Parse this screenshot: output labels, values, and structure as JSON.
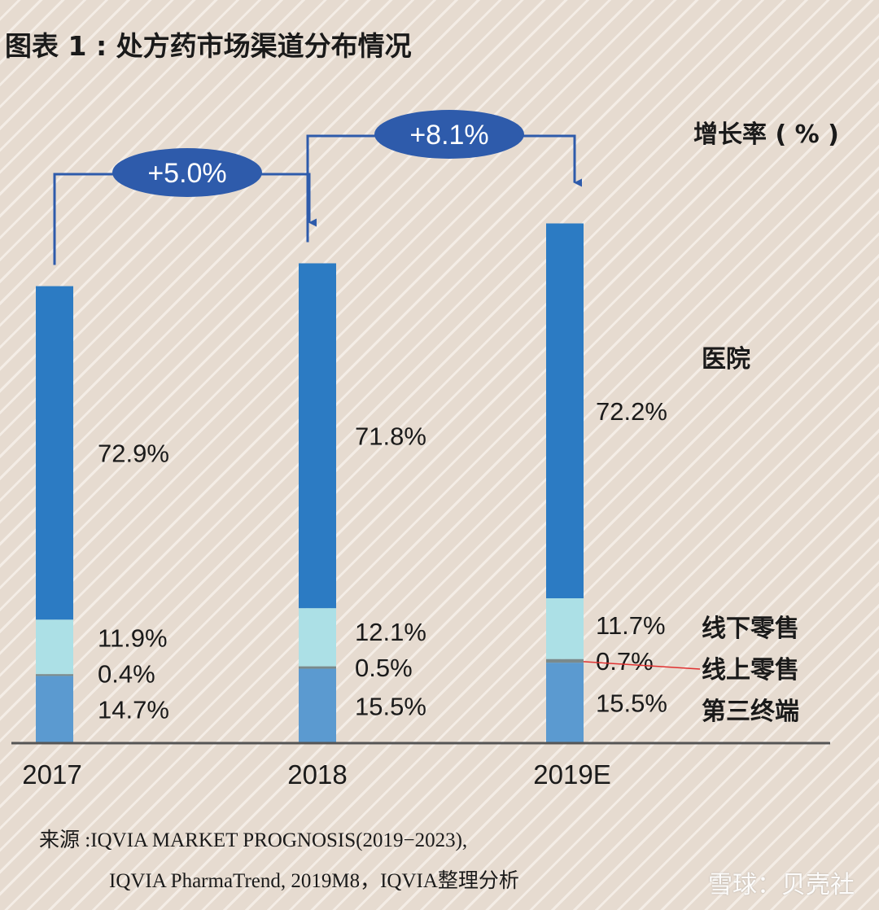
{
  "title": "图表 1 : 处方药市场渠道分布情况",
  "chart_data": {
    "type": "bar",
    "stacked": true,
    "categories": [
      "2017",
      "2018",
      "2019E"
    ],
    "series": [
      {
        "name": "第三终端",
        "values": [
          14.7,
          15.5,
          15.5
        ],
        "labels": [
          "14.7%",
          "15.5%",
          "15.5%"
        ],
        "color": "#5b9ad0"
      },
      {
        "name": "线上零售",
        "values": [
          0.4,
          0.5,
          0.7
        ],
        "labels": [
          "0.4%",
          "0.5%",
          "0.7%"
        ],
        "color": "#7a8a8c"
      },
      {
        "name": "线下零售",
        "values": [
          11.9,
          12.1,
          11.7
        ],
        "labels": [
          "11.9%",
          "12.1%",
          "11.7%"
        ],
        "color": "#ace0e6"
      },
      {
        "name": "医院",
        "values": [
          72.9,
          71.8,
          72.2
        ],
        "labels": [
          "72.9%",
          "71.8%",
          "72.2%"
        ],
        "color": "#2c7bc3"
      }
    ],
    "relative_totals": [
      100,
      105.0,
      113.5
    ],
    "growth": [
      {
        "from": "2017",
        "to": "2018",
        "label": "+5.0%"
      },
      {
        "from": "2018",
        "to": "2019E",
        "label": "+8.1%"
      }
    ],
    "growth_title": "增长率 ( % )",
    "legend_placement": "right"
  },
  "source": {
    "line1": "来源 :IQVIA  MARKET PROGNOSIS(2019−2023),",
    "line2": "IQVIA PharmaTrend, 2019M8，IQVIA整理分析"
  },
  "watermark": "雪球：贝壳社",
  "colors": {
    "arrow": "#2e5bab",
    "bubble": "#2e5bab",
    "axis": "#555555",
    "pointer_line": "#e03030"
  }
}
